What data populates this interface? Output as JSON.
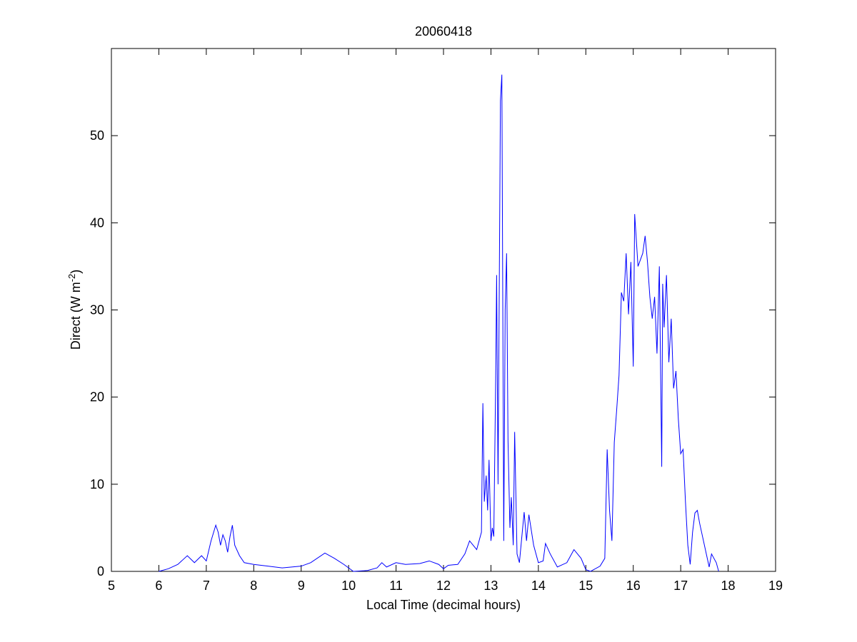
{
  "chart_data": {
    "type": "line",
    "title": "20060418",
    "xlabel": "Local Time (decimal hours)",
    "ylabel_parts": [
      "Direct (W m",
      "-2",
      ")"
    ],
    "xlim": [
      5,
      19
    ],
    "xticks": [
      5,
      6,
      7,
      8,
      9,
      10,
      11,
      12,
      13,
      14,
      15,
      16,
      17,
      18,
      19
    ],
    "ylim": [
      0,
      60
    ],
    "yticks": [
      0,
      10,
      20,
      30,
      40,
      50
    ],
    "grid": false,
    "x": [
      6.0,
      6.2,
      6.4,
      6.6,
      6.75,
      6.9,
      7.0,
      7.1,
      7.2,
      7.25,
      7.3,
      7.35,
      7.4,
      7.45,
      7.5,
      7.55,
      7.6,
      7.7,
      7.8,
      8.0,
      8.3,
      8.6,
      9.0,
      9.2,
      9.5,
      9.7,
      9.9,
      10.0,
      10.1,
      10.4,
      10.6,
      10.7,
      10.8,
      11.0,
      11.2,
      11.5,
      11.7,
      11.9,
      12.0,
      12.1,
      12.3,
      12.45,
      12.55,
      12.7,
      12.8,
      12.83,
      12.86,
      12.9,
      12.93,
      12.96,
      13.0,
      13.03,
      13.06,
      13.1,
      13.12,
      13.15,
      13.2,
      13.23,
      13.27,
      13.3,
      13.33,
      13.36,
      13.4,
      13.43,
      13.47,
      13.5,
      13.55,
      13.6,
      13.7,
      13.75,
      13.8,
      13.9,
      14.0,
      14.1,
      14.15,
      14.25,
      14.4,
      14.6,
      14.75,
      14.9,
      15.0,
      15.1,
      15.3,
      15.4,
      15.45,
      15.5,
      15.55,
      15.6,
      15.65,
      15.7,
      15.75,
      15.8,
      15.85,
      15.9,
      15.95,
      16.0,
      16.03,
      16.1,
      16.2,
      16.25,
      16.3,
      16.35,
      16.4,
      16.45,
      16.5,
      16.55,
      16.6,
      16.62,
      16.65,
      16.7,
      16.75,
      16.8,
      16.85,
      16.9,
      16.95,
      17.0,
      17.05,
      17.1,
      17.15,
      17.2,
      17.25,
      17.3,
      17.35,
      17.4,
      17.5,
      17.6,
      17.65,
      17.75,
      17.8
    ],
    "series": [
      {
        "name": "Direct",
        "color": "#0000ff",
        "values": [
          0,
          0.3,
          0.8,
          1.8,
          1.0,
          1.8,
          1.2,
          3.5,
          5.3,
          4.5,
          3.0,
          4.2,
          3.5,
          2.2,
          4.0,
          5.3,
          3.0,
          1.8,
          1.0,
          0.8,
          0.6,
          0.4,
          0.6,
          1.0,
          2.1,
          1.5,
          0.8,
          0.4,
          0,
          0.1,
          0.4,
          1.0,
          0.5,
          1.0,
          0.8,
          0.9,
          1.2,
          0.8,
          0.3,
          0.7,
          0.8,
          2.0,
          3.5,
          2.5,
          4.5,
          19.3,
          8,
          11,
          7,
          12.8,
          3.5,
          5,
          4,
          22,
          34,
          10,
          54,
          57,
          3.5,
          30,
          36.5,
          15,
          5,
          8.5,
          3,
          16,
          2,
          1,
          6.8,
          3.5,
          6.5,
          3,
          1,
          1.2,
          3.2,
          2,
          0.5,
          1.0,
          2.5,
          1.5,
          0.2,
          0,
          0.6,
          1.5,
          14,
          7,
          3.5,
          14.8,
          18.5,
          22.5,
          32,
          31,
          36.5,
          29.5,
          35.5,
          23.5,
          41,
          35,
          36.5,
          38.5,
          35.5,
          31.5,
          29,
          31.5,
          25,
          35,
          12,
          33,
          28,
          34,
          24,
          29,
          21,
          23,
          17.5,
          13.5,
          14,
          8,
          3,
          0.8,
          4.5,
          6.7,
          7,
          5.5,
          3,
          0.5,
          2,
          1,
          0
        ]
      }
    ]
  }
}
